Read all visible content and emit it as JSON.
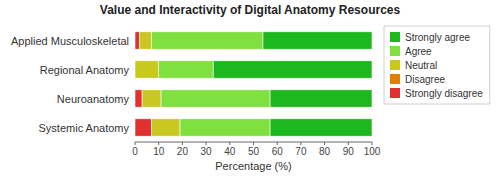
{
  "chart_data": {
    "type": "bar",
    "orientation": "horizontal",
    "stacked": true,
    "title": "Value and Interactivity of Digital Anatomy Resources",
    "x_label": "Percentage (%)",
    "categories": [
      "Applied Musculoskeletal",
      "Regional Anatomy",
      "Neuroanatomy",
      "Systemic Anatomy"
    ],
    "series": [
      {
        "name": "Strongly disagree",
        "color": "#e03030",
        "values": [
          2,
          0,
          3,
          7
        ]
      },
      {
        "name": "Disagree",
        "color": "#e08000",
        "values": [
          0,
          0,
          0,
          0
        ]
      },
      {
        "name": "Neutral",
        "color": "#c8c820",
        "values": [
          5,
          10,
          8,
          12
        ]
      },
      {
        "name": "Agree",
        "color": "#80e040",
        "values": [
          47,
          23,
          46,
          38
        ]
      },
      {
        "name": "Strongly agree",
        "color": "#1db81d",
        "values": [
          46,
          67,
          43,
          43
        ]
      }
    ],
    "xlim": [
      0,
      100
    ],
    "xticks": [
      0,
      10,
      20,
      30,
      40,
      50,
      60,
      70,
      80,
      90,
      100
    ],
    "grid": false,
    "legend": "right"
  }
}
